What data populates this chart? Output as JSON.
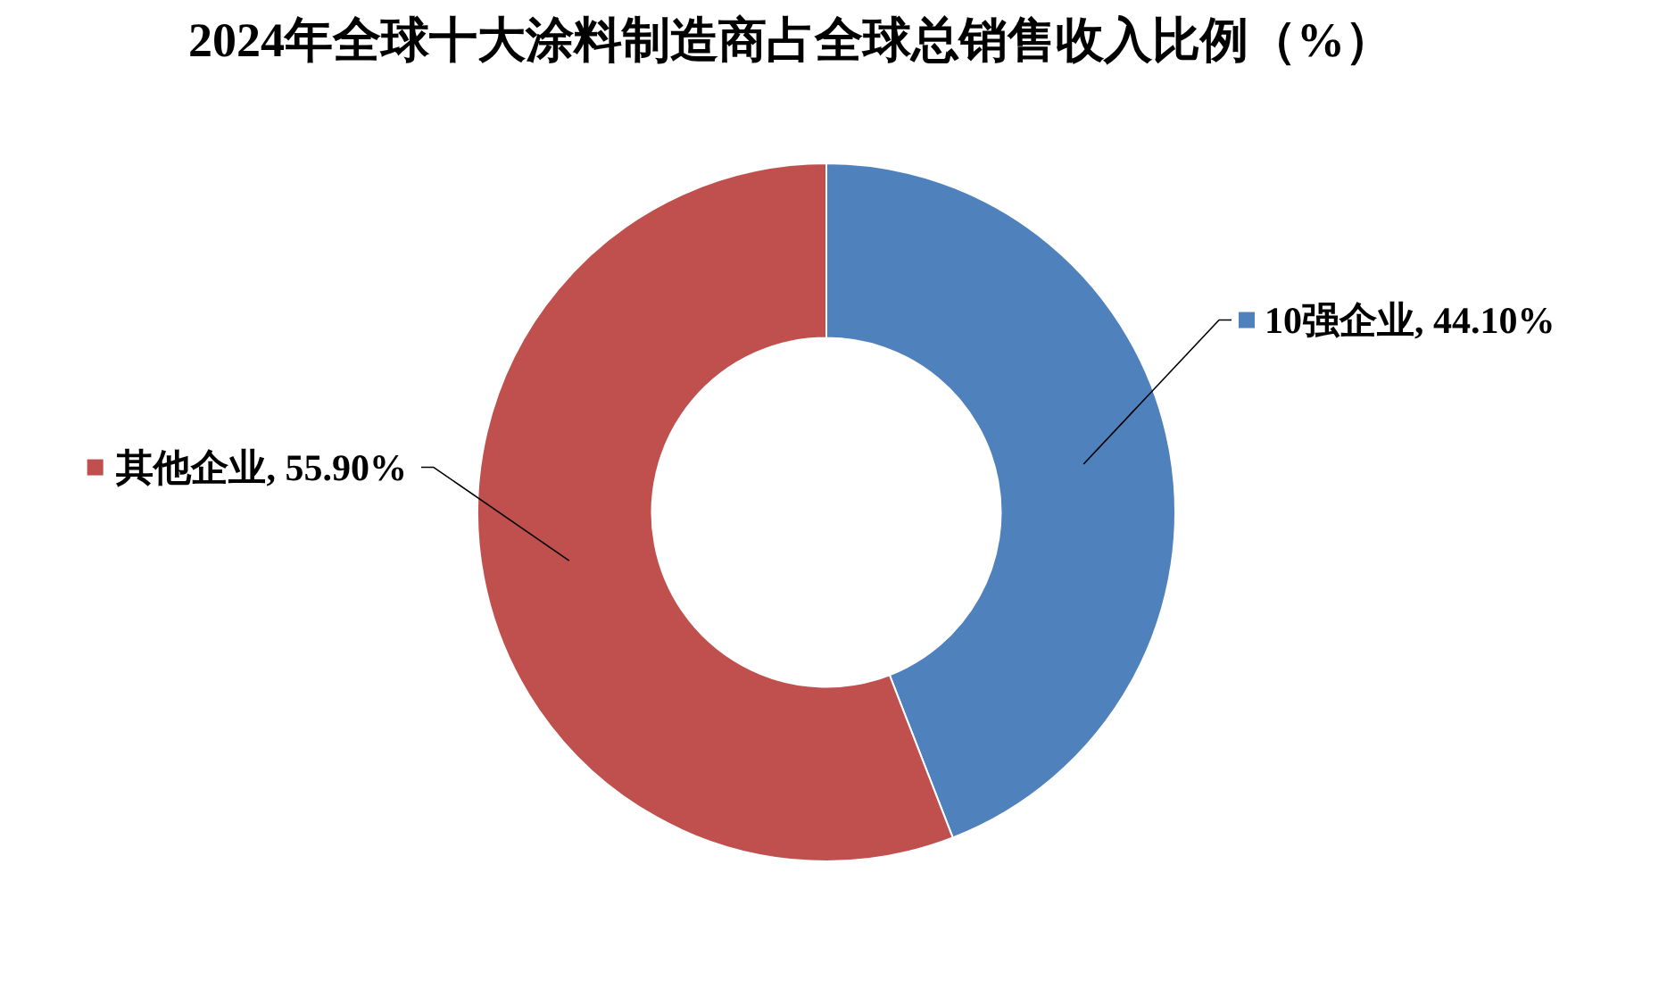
{
  "chart_data": {
    "type": "donut",
    "title": "2024年全球十大涂料制造商占全球总销售收入比例（%）",
    "categories": [
      "10强企业",
      "其他企业"
    ],
    "values": [
      44.1,
      55.9
    ],
    "colors": [
      "#4f81bd",
      "#c0504d"
    ],
    "value_labels": [
      "44.10%",
      "55.90%"
    ],
    "legend": "top"
  }
}
